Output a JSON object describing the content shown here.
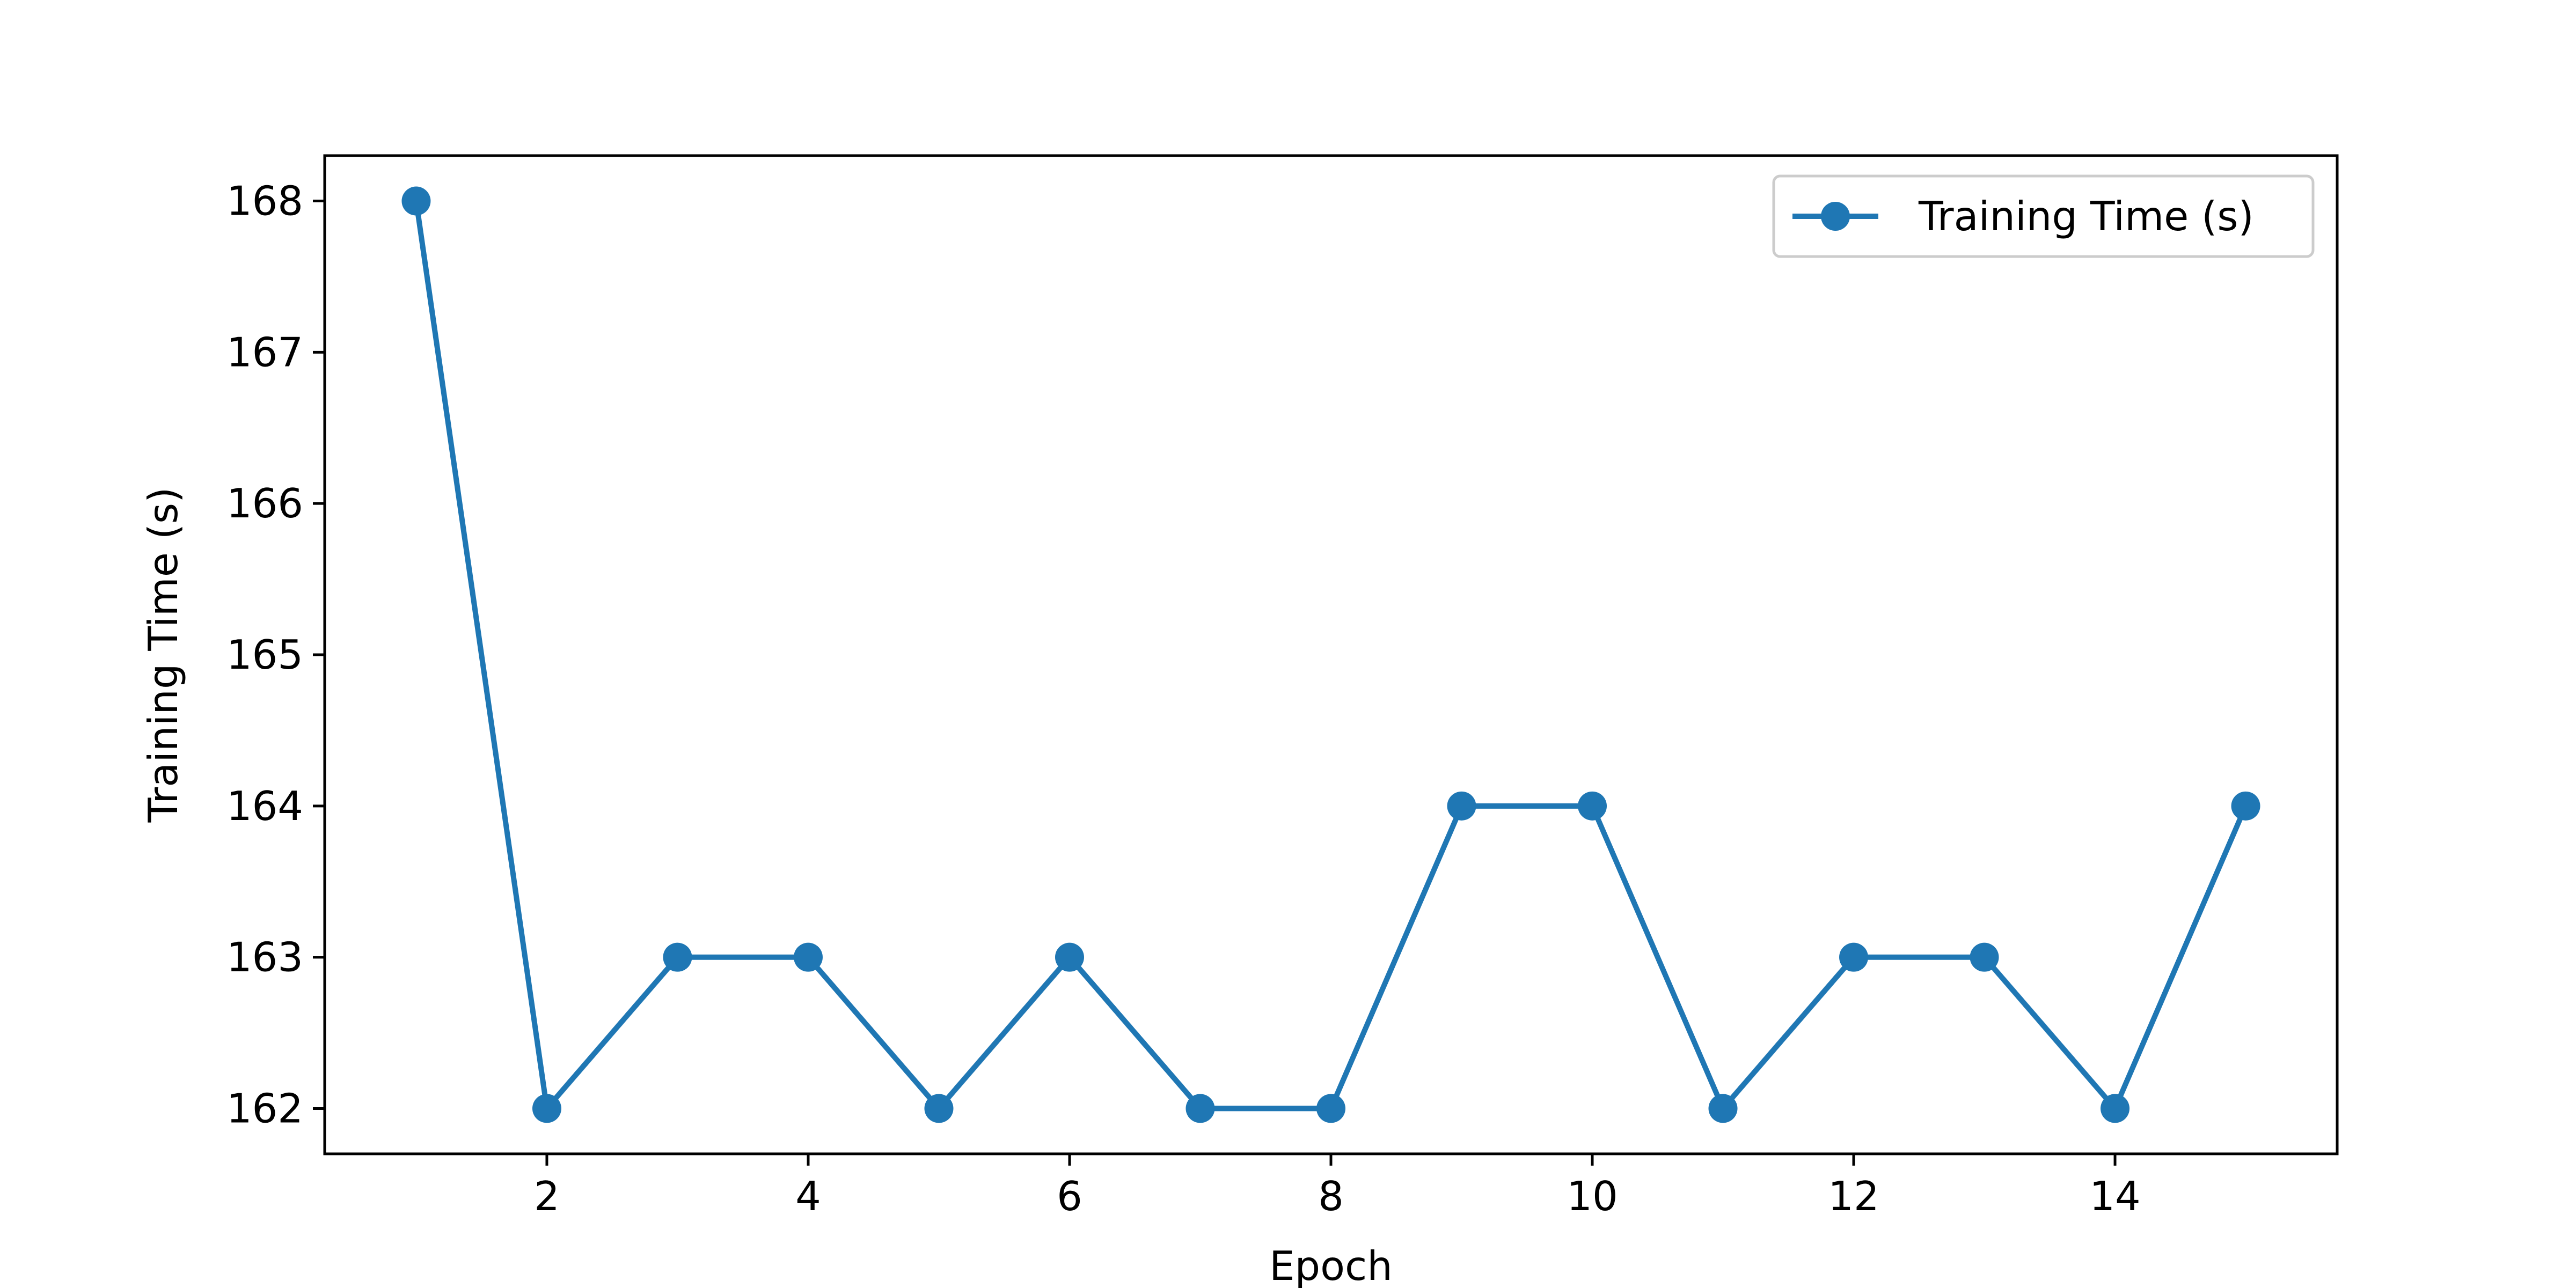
{
  "chart_data": {
    "type": "line",
    "title": "",
    "xlabel": "Epoch",
    "ylabel": "Training Time (s)",
    "x": [
      1,
      2,
      3,
      4,
      5,
      6,
      7,
      8,
      9,
      10,
      11,
      12,
      13,
      14,
      15
    ],
    "series": [
      {
        "name": "Training Time (s)",
        "color": "#1f77b4",
        "marker": "circle",
        "values": [
          168,
          162,
          163,
          163,
          162,
          163,
          162,
          162,
          164,
          164,
          162,
          163,
          163,
          162,
          164
        ]
      }
    ],
    "xticks": [
      2,
      4,
      6,
      8,
      10,
      12,
      14
    ],
    "yticks": [
      162,
      163,
      164,
      165,
      166,
      167,
      168
    ],
    "xlim": [
      0.3,
      15.7
    ],
    "ylim": [
      161.7,
      168.3
    ],
    "grid": false,
    "legend_position": "top-right"
  }
}
